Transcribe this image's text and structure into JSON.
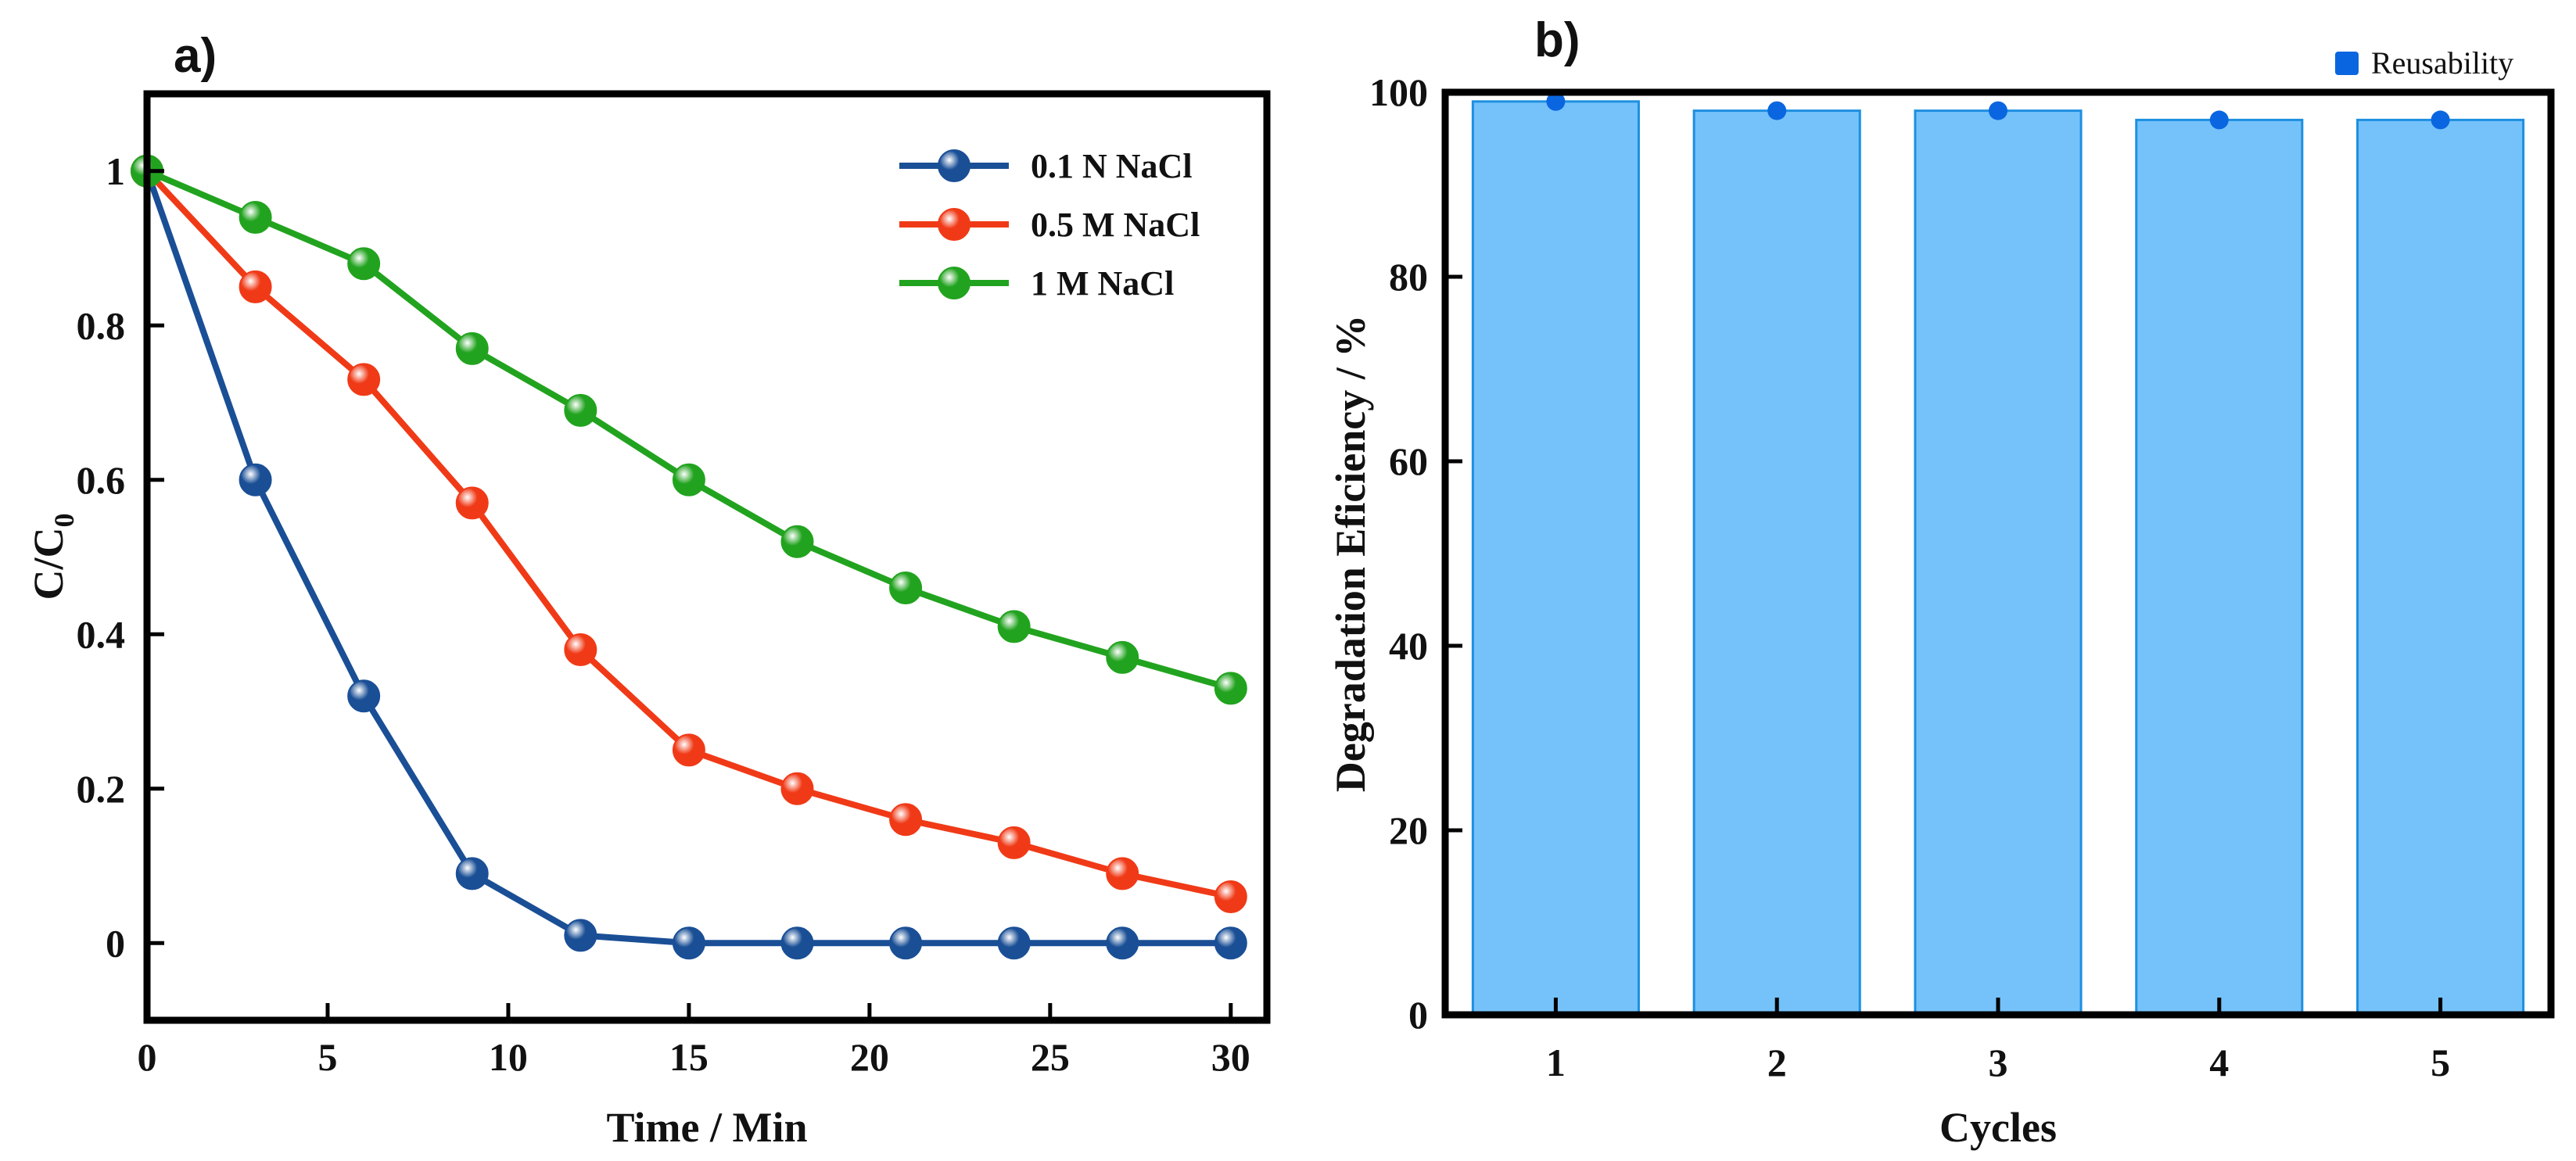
{
  "chart_data": [
    {
      "panel_label": "a)",
      "type": "line",
      "xlabel": "Time / Min",
      "ylabel_main": "C/C",
      "ylabel_sub": "0",
      "xlim": [
        0,
        31
      ],
      "ylim": [
        -0.1,
        1.1
      ],
      "x_ticks": [
        0,
        5,
        10,
        15,
        20,
        25,
        30
      ],
      "y_ticks": [
        0,
        0.2,
        0.4,
        0.6,
        0.8,
        1
      ],
      "x_tick_labels": [
        "0",
        "5",
        "10",
        "15",
        "20",
        "25",
        "30"
      ],
      "y_tick_labels": [
        "0",
        "0.2",
        "0.4",
        "0.6",
        "0.8",
        "1"
      ],
      "legend_position": "top-right",
      "x": [
        0,
        3,
        6,
        9,
        12,
        15,
        18,
        21,
        24,
        27,
        30
      ],
      "series": [
        {
          "name": "0.1 N NaCl",
          "color": "#1a4f96",
          "values": [
            1.0,
            0.6,
            0.32,
            0.09,
            0.01,
            0.0,
            0.0,
            0.0,
            0.0,
            0.0,
            0.0
          ]
        },
        {
          "name": "0.5 M NaCl",
          "color": "#f03a17",
          "values": [
            1.0,
            0.85,
            0.73,
            0.57,
            0.38,
            0.25,
            0.2,
            0.16,
            0.13,
            0.09,
            0.06
          ]
        },
        {
          "name": "1 M NaCl",
          "color": "#22a31f",
          "values": [
            1.0,
            0.94,
            0.88,
            0.77,
            0.69,
            0.6,
            0.52,
            0.46,
            0.41,
            0.37,
            0.33
          ]
        }
      ]
    },
    {
      "panel_label": "b)",
      "type": "bar",
      "xlabel": "Cycles",
      "ylabel": "Degradation Eficiency / %",
      "ylim": [
        0,
        100
      ],
      "y_ticks": [
        0,
        20,
        40,
        60,
        80,
        100
      ],
      "y_tick_labels": [
        "0",
        "20",
        "40",
        "60",
        "80",
        "100"
      ],
      "categories": [
        "1",
        "2",
        "3",
        "4",
        "5"
      ],
      "legend_position": "top-right",
      "series": [
        {
          "name": "Reusability",
          "values": [
            99,
            98,
            98,
            97,
            97
          ],
          "bar_color": "#75c2fb",
          "point_color": "#0a66e0"
        }
      ]
    }
  ]
}
